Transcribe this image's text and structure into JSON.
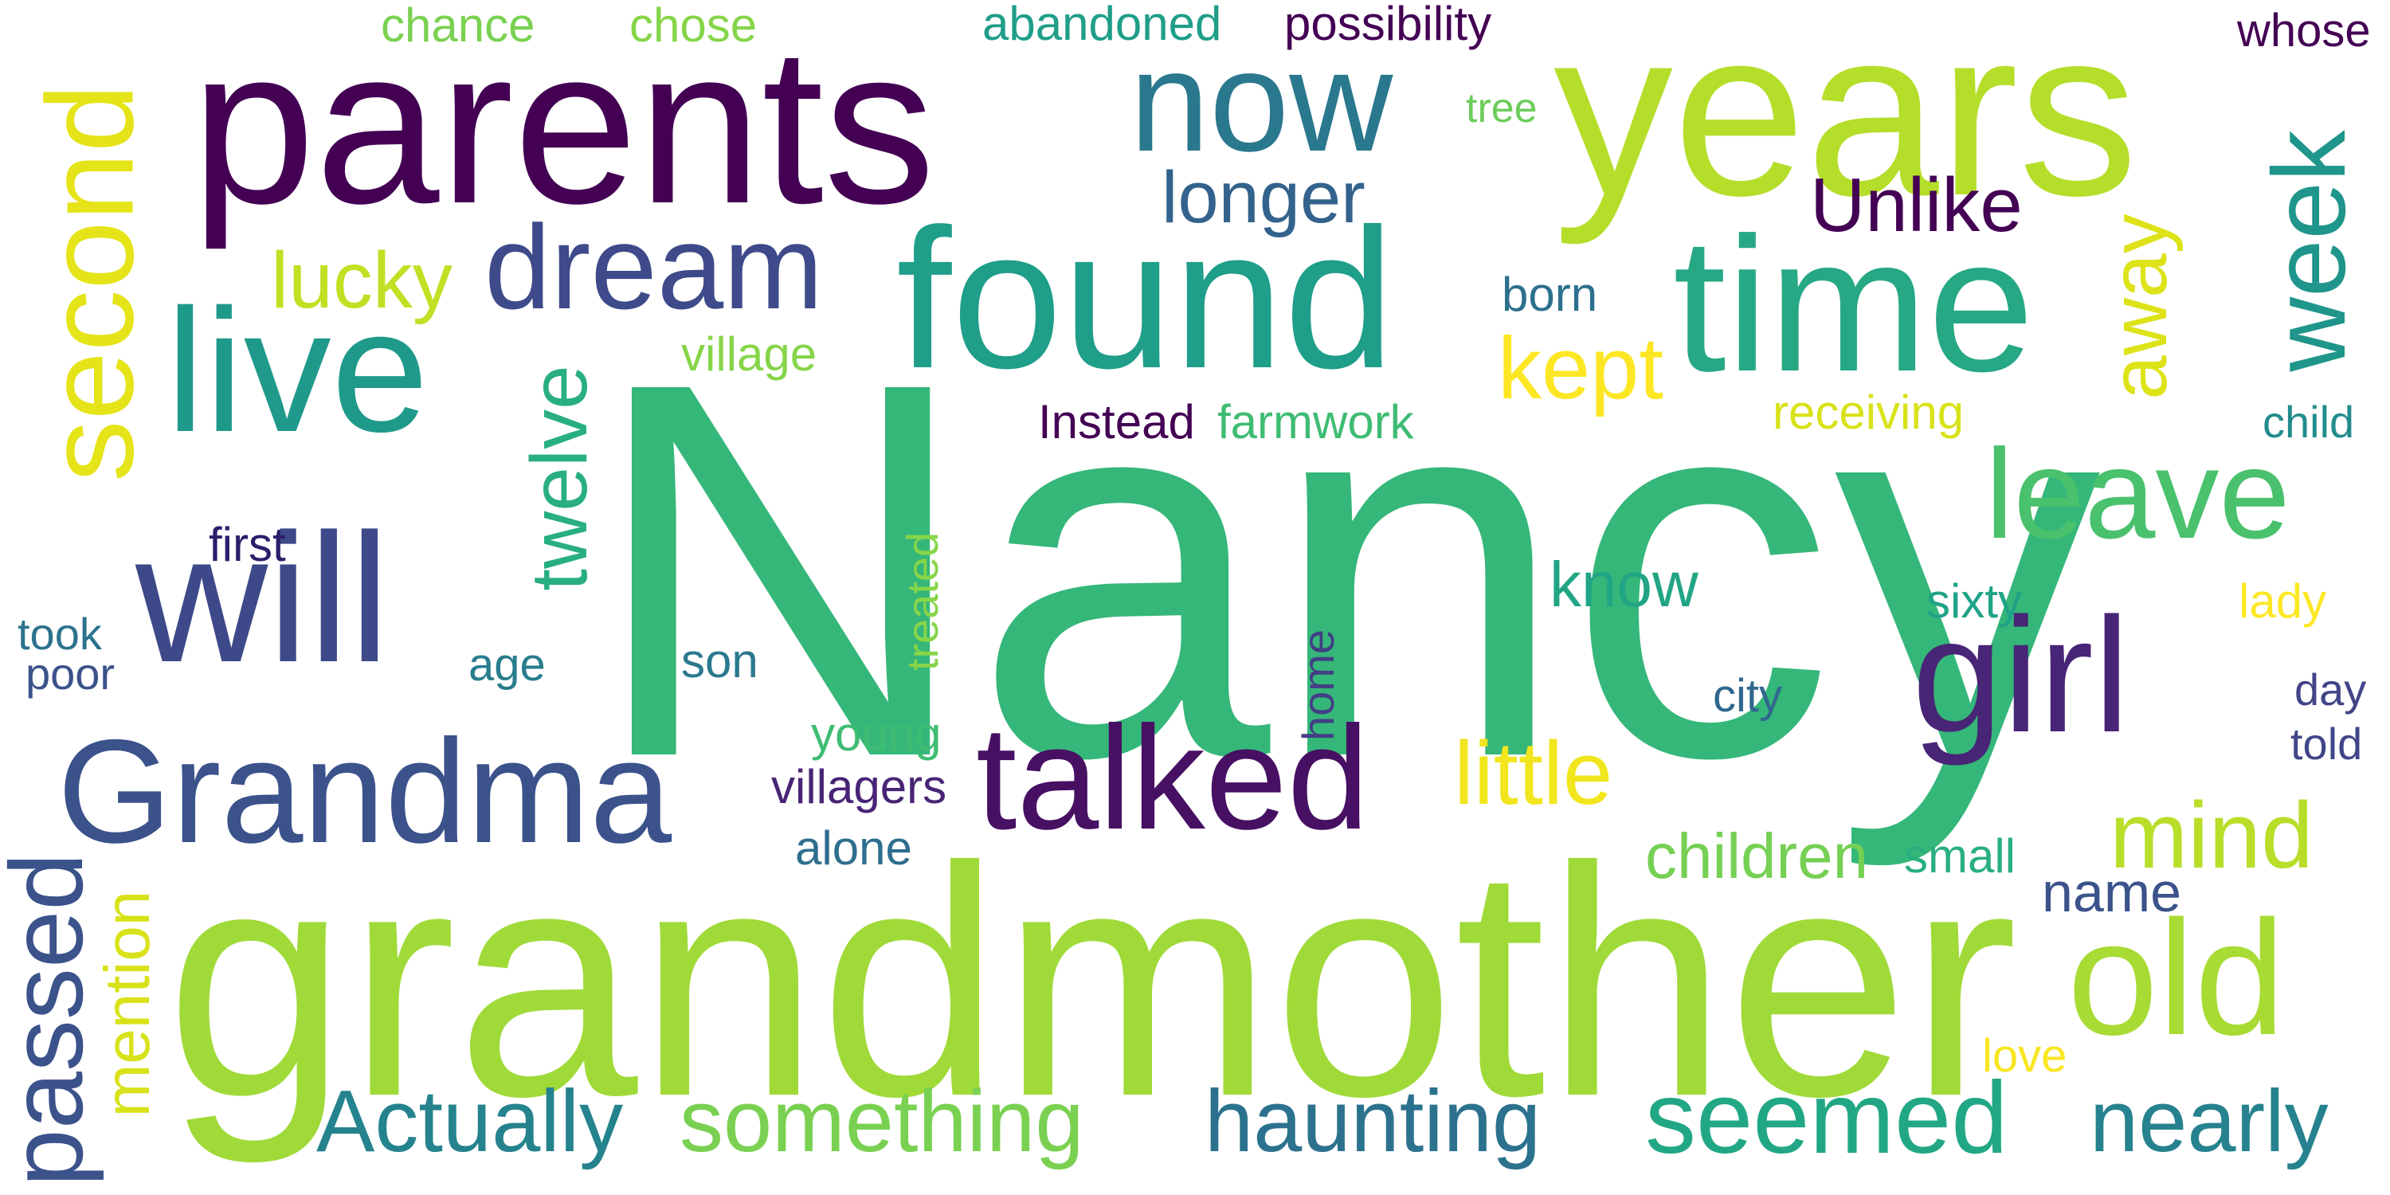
{
  "words": [
    {
      "text": "Nancy",
      "color": "#35b779"
    },
    {
      "text": "grandmother",
      "color": "#a0da39"
    },
    {
      "text": "parents",
      "color": "#440154"
    },
    {
      "text": "years",
      "color": "#b5de2b"
    },
    {
      "text": "found",
      "color": "#1f9e89"
    },
    {
      "text": "time",
      "color": "#26a884"
    },
    {
      "text": "now",
      "color": "#2a788e"
    },
    {
      "text": "live",
      "color": "#1f9a8a"
    },
    {
      "text": "will",
      "color": "#3e4989"
    },
    {
      "text": "Grandma",
      "color": "#3b528b"
    },
    {
      "text": "talked",
      "color": "#471063"
    },
    {
      "text": "girl",
      "color": "#482576"
    },
    {
      "text": "old",
      "color": "#a8db34"
    },
    {
      "text": "dream",
      "color": "#3e4a89"
    },
    {
      "text": "second",
      "color": "#e5e419"
    },
    {
      "text": "leave",
      "color": "#4ac16d"
    },
    {
      "text": "week",
      "color": "#1f958b"
    },
    {
      "text": "seemed",
      "color": "#22a785"
    },
    {
      "text": "something",
      "color": "#7ad151"
    },
    {
      "text": "Actually",
      "color": "#25838e"
    },
    {
      "text": "haunting",
      "color": "#2c728e"
    },
    {
      "text": "nearly",
      "color": "#26828e"
    },
    {
      "text": "passed",
      "color": "#3b528b"
    },
    {
      "text": "longer",
      "color": "#33638d"
    },
    {
      "text": "lucky",
      "color": "#c2df23"
    },
    {
      "text": "kept",
      "color": "#fde725"
    },
    {
      "text": "Unlike",
      "color": "#440154"
    },
    {
      "text": "away",
      "color": "#dde318"
    },
    {
      "text": "twelve",
      "color": "#29af7f"
    },
    {
      "text": "little",
      "color": "#f1e51d"
    },
    {
      "text": "mind",
      "color": "#b8de29"
    },
    {
      "text": "children",
      "color": "#75d054"
    },
    {
      "text": "mention",
      "color": "#d8e219"
    },
    {
      "text": "know",
      "color": "#21a585"
    },
    {
      "text": "name",
      "color": "#3b528b"
    },
    {
      "text": "chance",
      "color": "#7ad151"
    },
    {
      "text": "chose",
      "color": "#86d549"
    },
    {
      "text": "abandoned",
      "color": "#1f9e89"
    },
    {
      "text": "possibility",
      "color": "#440154"
    },
    {
      "text": "whose",
      "color": "#440154"
    },
    {
      "text": "tree",
      "color": "#6ccd5a"
    },
    {
      "text": "born",
      "color": "#2d708e"
    },
    {
      "text": "village",
      "color": "#86d549"
    },
    {
      "text": "Instead",
      "color": "#440154"
    },
    {
      "text": "farmwork",
      "color": "#3fbc73"
    },
    {
      "text": "receiving",
      "color": "#d8e219"
    },
    {
      "text": "child",
      "color": "#228c8d"
    },
    {
      "text": "first",
      "color": "#2d1e6c"
    },
    {
      "text": "took",
      "color": "#2c728e"
    },
    {
      "text": "poor",
      "color": "#3b528b"
    },
    {
      "text": "age",
      "color": "#287c8e"
    },
    {
      "text": "son",
      "color": "#2a788e"
    },
    {
      "text": "treated",
      "color": "#86d549"
    },
    {
      "text": "home",
      "color": "#433e85"
    },
    {
      "text": "sixty",
      "color": "#20a386"
    },
    {
      "text": "lady",
      "color": "#fde725"
    },
    {
      "text": "city",
      "color": "#30678d"
    },
    {
      "text": "day",
      "color": "#414487"
    },
    {
      "text": "told",
      "color": "#404688"
    },
    {
      "text": "young",
      "color": "#3fbc73"
    },
    {
      "text": "villagers",
      "color": "#482475"
    },
    {
      "text": "alone",
      "color": "#2e6e8e"
    },
    {
      "text": "small",
      "color": "#29af7f"
    },
    {
      "text": "love",
      "color": "#f8e621"
    }
  ]
}
